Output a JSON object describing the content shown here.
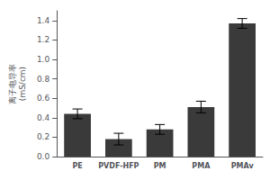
{
  "chart_data": {
    "type": "bar",
    "ylabel": "离子电导率\n(mS/cm)",
    "categories": [
      "PE",
      "PVDF-HFP",
      "PM",
      "PMA",
      "PMAv"
    ],
    "values": [
      0.44,
      0.18,
      0.28,
      0.51,
      1.37
    ],
    "errors": [
      0.05,
      0.06,
      0.05,
      0.06,
      0.05
    ],
    "color": "#3a3a3a",
    "ylim": [
      0,
      1.5
    ],
    "yticks": [
      {
        "value": 0.0,
        "label": "0.0"
      },
      0.2,
      0.4,
      0.6,
      0.8,
      {
        "value": 1.0,
        "label": "1.0"
      },
      1.2,
      1.4
    ],
    "grid": false
  }
}
